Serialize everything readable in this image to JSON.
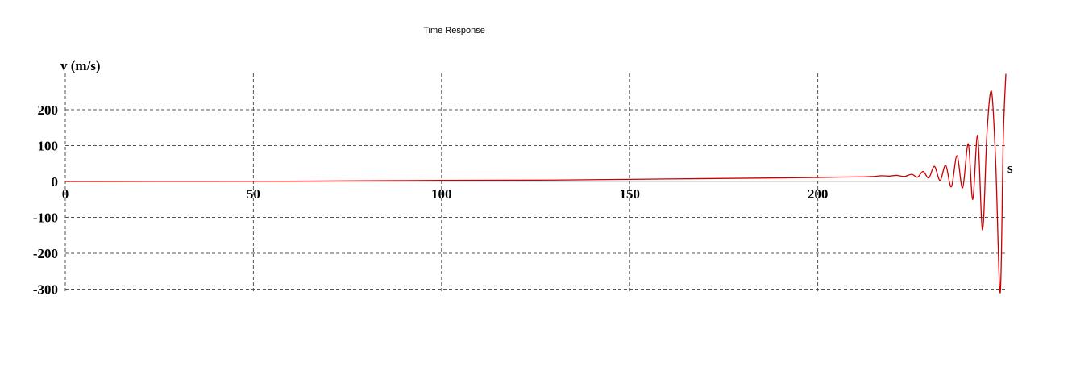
{
  "chart_data": {
    "type": "line",
    "title": "Time Response",
    "ylabel": "v (m/s)",
    "xlabel": "s",
    "xlim": [
      0,
      250
    ],
    "ylim": [
      -300,
      300
    ],
    "x_ticks": [
      0,
      50,
      100,
      150,
      200
    ],
    "y_ticks": [
      200,
      100,
      0,
      -100,
      -200,
      -300
    ],
    "grid": true,
    "series": [
      {
        "color": "#cc0000",
        "points": [
          [
            0,
            0
          ],
          [
            50,
            0.5
          ],
          [
            65,
            1
          ],
          [
            100,
            3
          ],
          [
            130,
            4
          ],
          [
            160,
            7
          ],
          [
            190,
            10
          ],
          [
            205,
            12
          ],
          [
            212,
            13
          ],
          [
            215,
            14
          ],
          [
            217,
            16
          ],
          [
            219,
            15
          ],
          [
            221,
            17
          ],
          [
            223,
            14
          ],
          [
            225,
            20
          ],
          [
            226.5,
            12
          ],
          [
            228,
            28
          ],
          [
            229.5,
            10
          ],
          [
            231,
            42
          ],
          [
            232.5,
            3
          ],
          [
            234,
            45
          ],
          [
            235.5,
            -15
          ],
          [
            237,
            72
          ],
          [
            238.5,
            -18
          ],
          [
            240,
            105
          ],
          [
            241.2,
            -50
          ],
          [
            242.5,
            128
          ],
          [
            243.8,
            -135
          ],
          [
            245,
            140
          ],
          [
            246.2,
            250
          ],
          [
            247.3,
            50
          ],
          [
            248.5,
            -310
          ],
          [
            249.3,
            120
          ],
          [
            250,
            300
          ]
        ]
      }
    ]
  }
}
